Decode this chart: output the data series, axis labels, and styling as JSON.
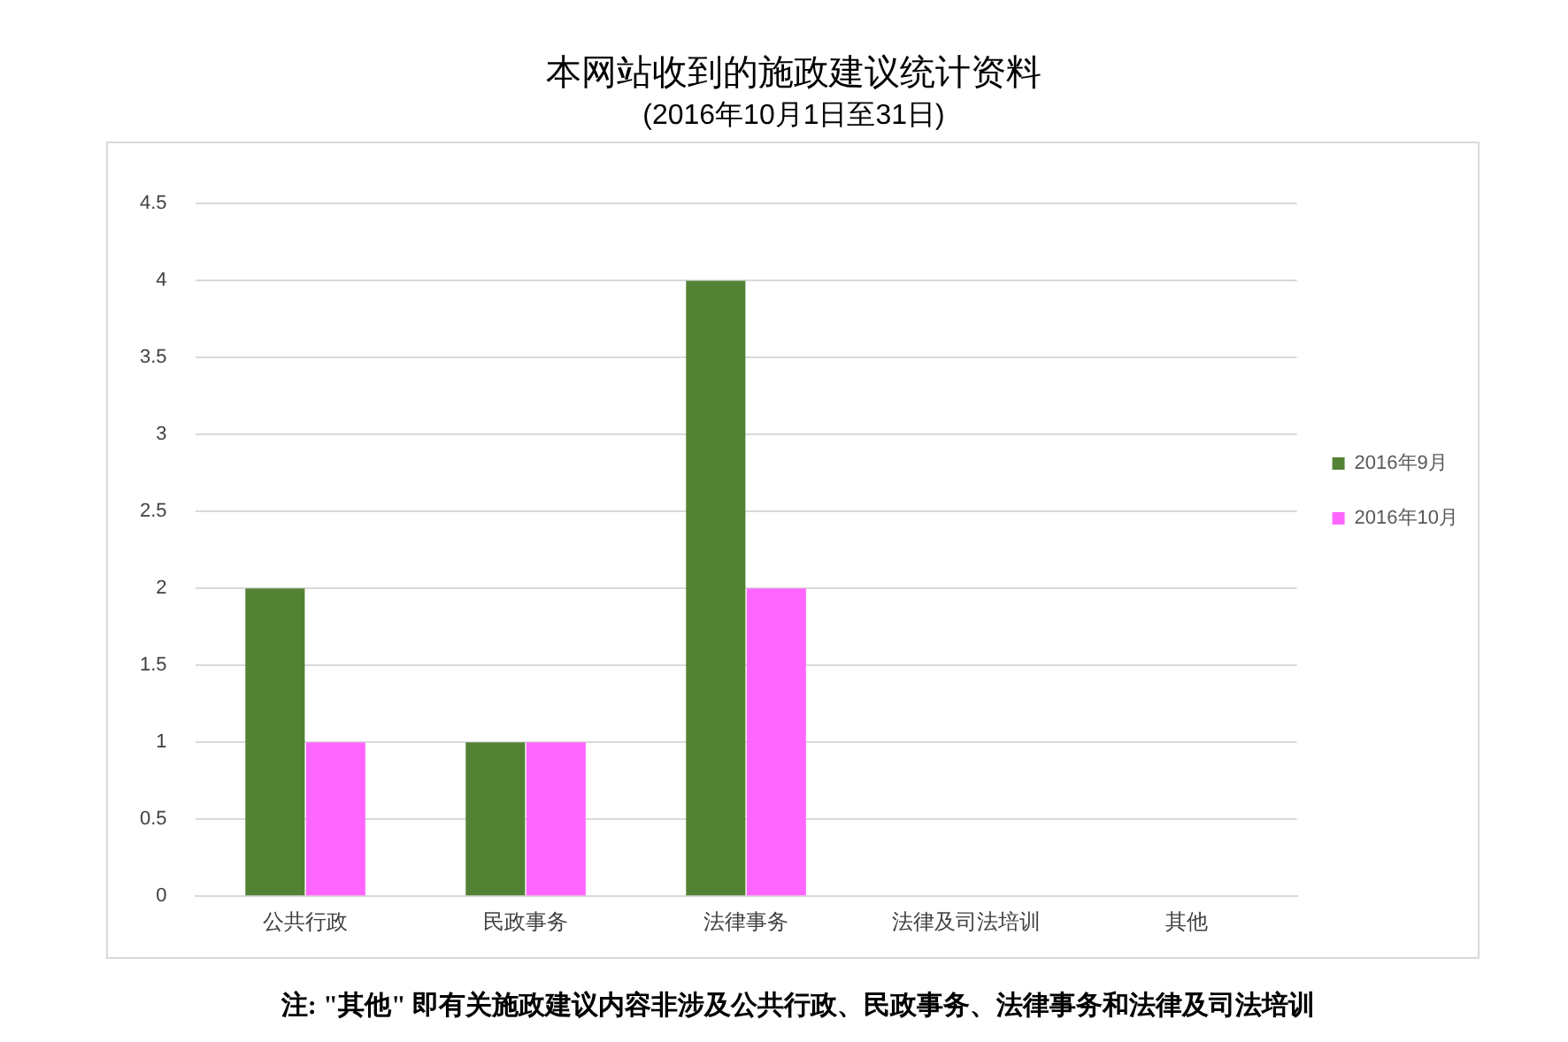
{
  "chart_data": {
    "type": "bar",
    "title": "本网站收到的施政建议统计资料",
    "subtitle": "(2016年10月1日至31日)",
    "categories": [
      "公共行政",
      "民政事务",
      "法律事务",
      "法律及司法培训",
      "其他"
    ],
    "series": [
      {
        "name": "2016年9月",
        "color": "#548235",
        "values": [
          2,
          1,
          4,
          0,
          0
        ]
      },
      {
        "name": "2016年10月",
        "color": "#ff66ff",
        "values": [
          1,
          1,
          2,
          0,
          0
        ]
      }
    ],
    "ylim": [
      0,
      4.5
    ],
    "yticks": [
      0,
      0.5,
      1,
      1.5,
      2,
      2.5,
      3,
      3.5,
      4,
      4.5
    ],
    "grid": "y",
    "legend": "right",
    "annotations": [
      "注: \"其他\" 即有关施政建议内容非涉及公共行政、民政事务、法律事务和法律及司法培训"
    ]
  }
}
